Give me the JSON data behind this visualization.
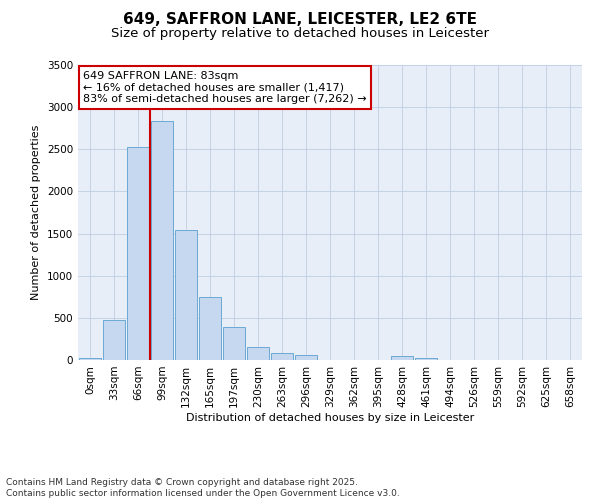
{
  "title": "649, SAFFRON LANE, LEICESTER, LE2 6TE",
  "subtitle": "Size of property relative to detached houses in Leicester",
  "xlabel": "Distribution of detached houses by size in Leicester",
  "ylabel": "Number of detached properties",
  "bar_color": "#c5d8f0",
  "bar_edge_color": "#6aaad4",
  "background_color": "#e8eef8",
  "grid_color": "#b8c8e0",
  "vline_color": "#cc0000",
  "vline_x": 2.5,
  "annotation_box_color": "#cc0000",
  "annotation_line1": "649 SAFFRON LANE: 83sqm",
  "annotation_line2": "← 16% of detached houses are smaller (1,417)",
  "annotation_line3": "83% of semi-detached houses are larger (7,262) →",
  "categories": [
    "0sqm",
    "33sqm",
    "66sqm",
    "99sqm",
    "132sqm",
    "165sqm",
    "197sqm",
    "230sqm",
    "263sqm",
    "296sqm",
    "329sqm",
    "362sqm",
    "395sqm",
    "428sqm",
    "461sqm",
    "494sqm",
    "526sqm",
    "559sqm",
    "592sqm",
    "625sqm",
    "658sqm"
  ],
  "bar_heights": [
    20,
    480,
    2530,
    2840,
    1540,
    750,
    390,
    155,
    80,
    55,
    0,
    0,
    0,
    45,
    20,
    0,
    0,
    0,
    0,
    0,
    0
  ],
  "ylim": [
    0,
    3500
  ],
  "yticks": [
    0,
    500,
    1000,
    1500,
    2000,
    2500,
    3000,
    3500
  ],
  "footer": "Contains HM Land Registry data © Crown copyright and database right 2025.\nContains public sector information licensed under the Open Government Licence v3.0.",
  "title_fontsize": 11,
  "subtitle_fontsize": 9.5,
  "axis_label_fontsize": 8,
  "tick_fontsize": 7.5,
  "footer_fontsize": 6.5,
  "ann_fontsize": 8
}
